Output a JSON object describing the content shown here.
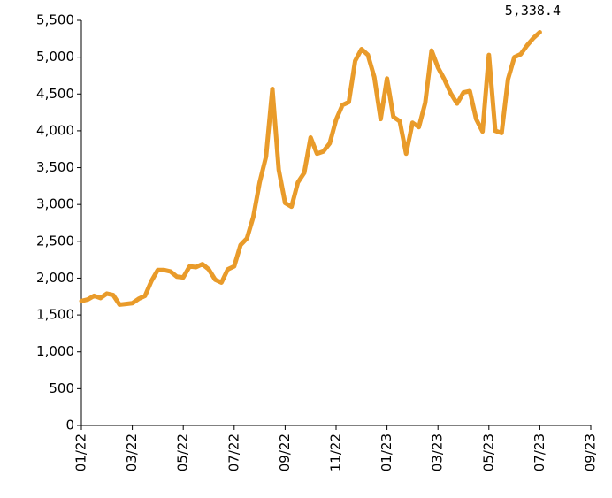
{
  "chart_data": {
    "type": "line",
    "categories": [
      "01/22",
      null,
      null,
      null,
      null,
      null,
      null,
      null,
      "03/22",
      null,
      null,
      null,
      null,
      null,
      null,
      null,
      "05/22",
      null,
      null,
      null,
      null,
      null,
      null,
      null,
      "07/22",
      null,
      null,
      null,
      null,
      null,
      null,
      null,
      "09/22",
      null,
      null,
      null,
      null,
      null,
      null,
      null,
      "11/22",
      null,
      null,
      null,
      null,
      null,
      null,
      null,
      "01/23",
      null,
      null,
      null,
      null,
      null,
      null,
      null,
      "03/23",
      null,
      null,
      null,
      null,
      null,
      null,
      null,
      "05/23",
      null,
      null,
      null,
      null,
      null,
      null,
      null,
      "07/23",
      null,
      null,
      null,
      null,
      null,
      null,
      null,
      "09/23"
    ],
    "series": [
      {
        "name": null,
        "color": "#e99b2a",
        "values": [
          1690,
          1710,
          1760,
          1730,
          1790,
          1770,
          1640,
          1650,
          1660,
          1720,
          1760,
          1960,
          2110,
          2110,
          2090,
          2020,
          2010,
          2160,
          2150,
          2190,
          2120,
          1980,
          1940,
          2120,
          2160,
          2450,
          2540,
          2830,
          3300,
          3650,
          4570,
          3470,
          3020,
          2970,
          3300,
          3430,
          3910,
          3690,
          3720,
          3830,
          4150,
          4350,
          4390,
          4950,
          5110,
          5030,
          4730,
          4160,
          4710,
          4190,
          4130,
          3690,
          4110,
          4050,
          4380,
          5090,
          4860,
          4700,
          4510,
          4370,
          4520,
          4540,
          4160,
          3990,
          5030,
          4000,
          3970,
          4700,
          5000,
          5040,
          5160,
          5260,
          5338.4,
          null,
          null,
          null,
          null,
          null,
          null,
          null,
          null
        ],
        "value_labels": [
          null,
          null,
          null,
          null,
          null,
          null,
          null,
          null,
          null,
          null,
          null,
          null,
          null,
          null,
          null,
          null,
          null,
          null,
          null,
          null,
          null,
          null,
          null,
          null,
          null,
          null,
          null,
          null,
          null,
          null,
          null,
          null,
          null,
          null,
          null,
          null,
          null,
          null,
          null,
          null,
          null,
          null,
          null,
          null,
          null,
          null,
          null,
          null,
          null,
          null,
          null,
          null,
          null,
          null,
          null,
          null,
          null,
          null,
          null,
          null,
          null,
          null,
          null,
          null,
          null,
          null,
          null,
          null,
          null,
          null,
          null,
          null,
          "5,338.4",
          null,
          null,
          null,
          null,
          null,
          null,
          null,
          null
        ]
      }
    ],
    "ylim": [
      0,
      5500
    ],
    "yticks": [
      0,
      500,
      {
        "value": 1000,
        "label": "1,000"
      },
      {
        "value": 1500,
        "label": "1,500"
      },
      {
        "value": 2000,
        "label": "2,000"
      },
      {
        "value": 2500,
        "label": "2,500"
      },
      {
        "value": 3000,
        "label": "3,000"
      },
      {
        "value": 3500,
        "label": "3,500"
      },
      {
        "value": 4000,
        "label": "4,000"
      },
      {
        "value": 4500,
        "label": "4,500"
      },
      {
        "value": 5000,
        "label": "5,000"
      },
      {
        "value": 5500,
        "label": "5,500"
      }
    ],
    "grid": false
  }
}
